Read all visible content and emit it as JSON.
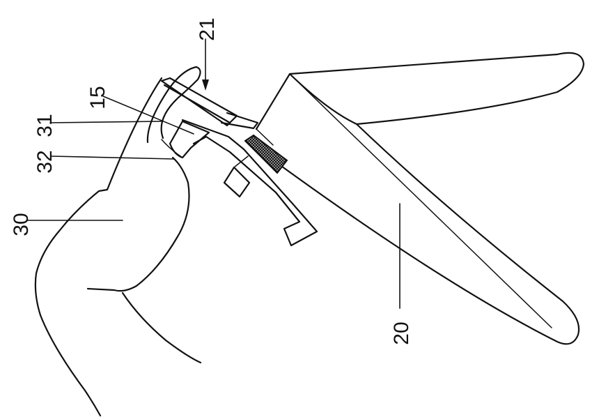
{
  "figure": {
    "reference_numerals": {
      "speculum": "20",
      "actuator_arrow": "21",
      "light_element": "15",
      "device_outer": "31",
      "device_inner": "32",
      "user_hand": "30"
    },
    "colors": {
      "line": "#111111",
      "background": "#ffffff",
      "hatch": "#111111"
    }
  }
}
